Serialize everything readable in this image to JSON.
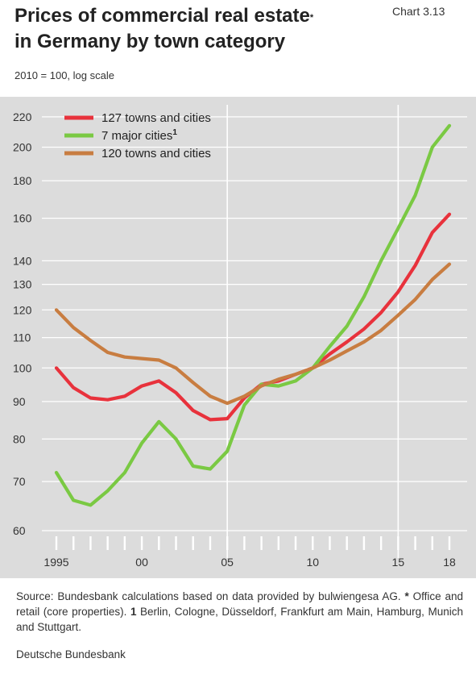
{
  "header": {
    "title_line1": "Prices of commercial real estate",
    "title_star": "*",
    "title_line2": "in Germany by town category",
    "chart_number": "Chart 3.13",
    "subtitle": "2010 = 100, log scale"
  },
  "chart_data": {
    "type": "line",
    "yscale": "log",
    "ylim": [
      60,
      225
    ],
    "xlim": [
      1995,
      2018
    ],
    "yticks": [
      60,
      70,
      80,
      90,
      100,
      110,
      120,
      130,
      140,
      160,
      180,
      200,
      220
    ],
    "xticks": [
      {
        "value": 1995,
        "label": "1995"
      },
      {
        "value": 2000,
        "label": "00"
      },
      {
        "value": 2005,
        "label": "05"
      },
      {
        "value": 2010,
        "label": "10"
      },
      {
        "value": 2015,
        "label": "15"
      },
      {
        "value": 2018,
        "label": "18"
      }
    ],
    "vlines": [
      2005,
      2015
    ],
    "legend_placement": "top-left",
    "x": [
      1995,
      1996,
      1997,
      1998,
      1999,
      2000,
      2001,
      2002,
      2003,
      2004,
      2005,
      2006,
      2007,
      2008,
      2009,
      2010,
      2011,
      2012,
      2013,
      2014,
      2015,
      2016,
      2017,
      2018
    ],
    "series": [
      {
        "name": "127 towns and cities",
        "color": "#e8323c",
        "values": [
          100,
          94,
          91,
          90.5,
          91.5,
          94.5,
          96,
          92.5,
          87.5,
          85,
          85.3,
          91,
          95,
          96,
          98,
          100,
          104.5,
          108.5,
          113,
          119,
          127,
          138,
          153,
          162
        ]
      },
      {
        "name": "7 major cities",
        "sup": "1",
        "color": "#7ac943",
        "values": [
          72,
          66,
          65,
          68,
          72,
          79,
          84.5,
          80,
          73.5,
          72.8,
          77,
          89,
          95,
          94.5,
          96,
          100,
          107,
          114,
          125,
          140,
          155,
          172,
          200,
          214
        ]
      },
      {
        "name": "120 towns and cities",
        "color": "#c87d41",
        "values": [
          120,
          113.5,
          109,
          105,
          103.5,
          103,
          102.5,
          100,
          95.5,
          91.5,
          89.5,
          91.5,
          94.5,
          96.5,
          98,
          100,
          102.5,
          105.5,
          108.5,
          112.5,
          118,
          124,
          132,
          138.5
        ]
      }
    ]
  },
  "footer": {
    "source_prefix": "Source: Bundesbank calculations based on data provided by bulwiengesa AG. ",
    "star": "*",
    "star_text": " Office and retail (core properties). ",
    "note_num": "1",
    "note_text": " Berlin, Cologne, Düsseldorf, Frankfurt am Main, Hamburg, Munich and Stuttgart.",
    "publisher": "Deutsche Bundesbank"
  }
}
